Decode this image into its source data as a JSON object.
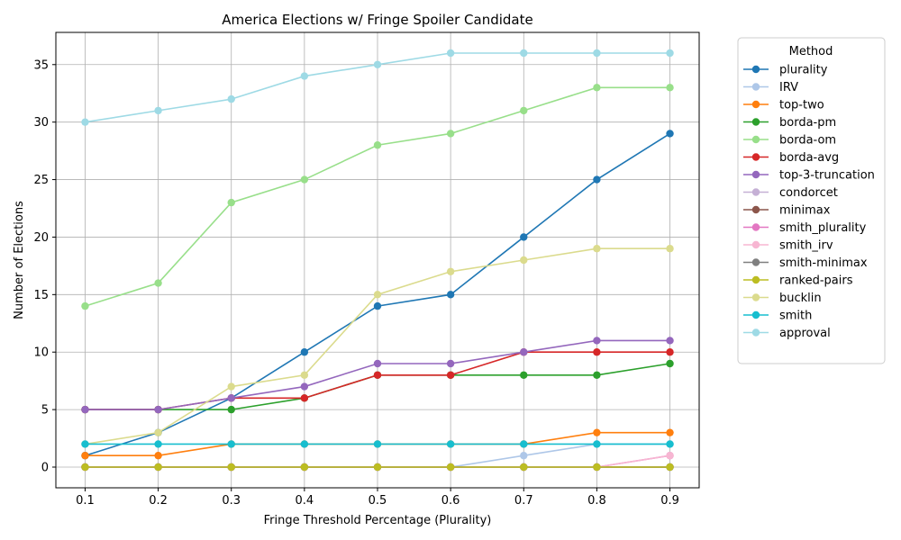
{
  "chart_data": {
    "type": "line",
    "title": "America Elections w/ Fringe Spoiler Candidate",
    "xlabel": "Fringe Threshold Percentage (Plurality)",
    "ylabel": "Number of Elections",
    "x": [
      0.1,
      0.2,
      0.3,
      0.4,
      0.5,
      0.6,
      0.7,
      0.8,
      0.9
    ],
    "x_tick_labels": [
      "0.1",
      "0.2",
      "0.3",
      "0.4",
      "0.5",
      "0.6",
      "0.7",
      "0.8",
      "0.9"
    ],
    "y_ticks": [
      0,
      5,
      10,
      15,
      20,
      25,
      30,
      35
    ],
    "y_tick_labels": [
      "0",
      "5",
      "10",
      "15",
      "20",
      "25",
      "30",
      "35"
    ],
    "xlim": [
      0.06,
      0.94
    ],
    "ylim": [
      -1.8,
      37.8
    ],
    "grid": true,
    "legend_title": "Method",
    "legend_position": "outside-right",
    "series": [
      {
        "name": "plurality",
        "color": "#1f77b4",
        "values": [
          1,
          3,
          6,
          10,
          14,
          15,
          20,
          25,
          29
        ]
      },
      {
        "name": "IRV",
        "color": "#aec7e8",
        "values": [
          0,
          0,
          0,
          0,
          0,
          0,
          1,
          2,
          2
        ]
      },
      {
        "name": "top-two",
        "color": "#ff7f0e",
        "values": [
          1,
          1,
          2,
          2,
          2,
          2,
          2,
          3,
          3
        ]
      },
      {
        "name": "borda-pm",
        "color": "#2ca02c",
        "values": [
          5,
          5,
          5,
          6,
          8,
          8,
          8,
          8,
          9
        ]
      },
      {
        "name": "borda-om",
        "color": "#98df8a",
        "values": [
          14,
          16,
          23,
          25,
          28,
          29,
          31,
          33,
          33
        ]
      },
      {
        "name": "borda-avg",
        "color": "#d62728",
        "values": [
          5,
          5,
          6,
          6,
          8,
          8,
          10,
          10,
          10
        ]
      },
      {
        "name": "top-3-truncation",
        "color": "#9467bd",
        "values": [
          5,
          5,
          6,
          7,
          9,
          9,
          10,
          11,
          11
        ]
      },
      {
        "name": "condorcet",
        "color": "#c5b0d5",
        "values": [
          0,
          0,
          0,
          0,
          0,
          0,
          0,
          0,
          0
        ]
      },
      {
        "name": "minimax",
        "color": "#8c564b",
        "values": [
          0,
          0,
          0,
          0,
          0,
          0,
          0,
          0,
          0
        ]
      },
      {
        "name": "smith_plurality",
        "color": "#e377c2",
        "values": [
          0,
          0,
          0,
          0,
          0,
          0,
          0,
          0,
          1
        ]
      },
      {
        "name": "smith_irv",
        "color": "#f7b6d2",
        "values": [
          0,
          0,
          0,
          0,
          0,
          0,
          0,
          0,
          1
        ]
      },
      {
        "name": "smith-minimax",
        "color": "#7f7f7f",
        "values": [
          0,
          0,
          0,
          0,
          0,
          0,
          0,
          0,
          0
        ]
      },
      {
        "name": "ranked-pairs",
        "color": "#bcbd22",
        "values": [
          0,
          0,
          0,
          0,
          0,
          0,
          0,
          0,
          0
        ]
      },
      {
        "name": "bucklin",
        "color": "#dbdb8d",
        "values": [
          2,
          3,
          7,
          8,
          15,
          17,
          18,
          19,
          19
        ]
      },
      {
        "name": "smith",
        "color": "#17becf",
        "values": [
          2,
          2,
          2,
          2,
          2,
          2,
          2,
          2,
          2
        ]
      },
      {
        "name": "approval",
        "color": "#9edae5",
        "values": [
          30,
          31,
          32,
          34,
          35,
          36,
          36,
          36,
          36
        ]
      }
    ]
  }
}
